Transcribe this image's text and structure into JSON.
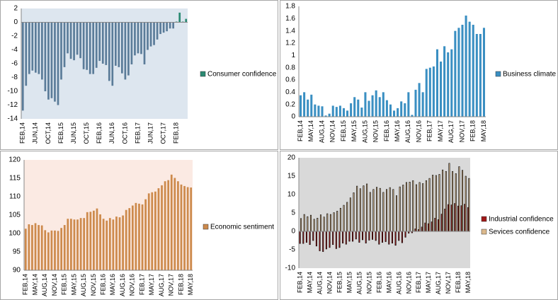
{
  "chart_data": [
    {
      "type": "bar",
      "legend": "right",
      "grid": false,
      "plot_background": "#dde6ef",
      "categories": [
        "FEB,14",
        null,
        null,
        null,
        "JUN,14",
        null,
        null,
        null,
        "OCT,14",
        null,
        null,
        null,
        "FEB,15",
        null,
        null,
        null,
        "JUN,15",
        null,
        null,
        null,
        "OCT,15",
        null,
        null,
        null,
        "FEB,16",
        null,
        null,
        null,
        "JUN,16",
        null,
        null,
        null,
        "OCT,16",
        null,
        null,
        null,
        "FEB,17",
        null,
        null,
        null,
        "JUN,17",
        null,
        null,
        null,
        "OCT,17",
        null,
        null,
        null,
        "FEB,18",
        null,
        null,
        null
      ],
      "series": [
        {
          "name": "Consumer confidence",
          "color": "#2a8a72",
          "negative_color": "#5b7c99",
          "values": [
            -12.8,
            -9.2,
            -7.5,
            -7.0,
            -7.3,
            -7.5,
            -8.3,
            -10.0,
            -11.2,
            -11.0,
            -11.5,
            -12.0,
            -8.3,
            -6.5,
            -4.5,
            -5.3,
            -5.5,
            -4.7,
            -5.2,
            -6.8,
            -6.9,
            -7.5,
            -7.5,
            -6.6,
            -5.6,
            -6.0,
            -6.2,
            -8.5,
            -9.2,
            -6.3,
            -6.5,
            -7.4,
            -8.3,
            -7.7,
            -6.1,
            -4.8,
            -4.5,
            -4.6,
            -6.1,
            -4.0,
            -3.5,
            -3.3,
            -2.5,
            -1.7,
            -1.5,
            -1.3,
            -0.9,
            -0.9,
            0.1,
            1.4,
            0.1,
            0.5
          ]
        }
      ],
      "ylim": [
        -14,
        2
      ],
      "yticks": [
        -14,
        -12,
        -10,
        -8,
        -6,
        -4,
        -2,
        0,
        2
      ]
    },
    {
      "type": "bar",
      "legend": "right",
      "grid": false,
      "plot_background": "#ffffff",
      "categories": [
        "FEB,14",
        null,
        null,
        "MAY,14",
        null,
        null,
        "AUG,14",
        null,
        null,
        "NOV,14",
        null,
        null,
        "FEB,15",
        null,
        null,
        "MAY,15",
        null,
        null,
        "AUG,15",
        null,
        null,
        "NOV,15",
        null,
        null,
        "FEB,16",
        null,
        null,
        "MAY,16",
        null,
        null,
        "AUG,16",
        null,
        null,
        "NOV,16",
        null,
        null,
        "FEB,17",
        null,
        null,
        "MAY,17",
        null,
        null,
        "AUG,17",
        null,
        null,
        "NOV,17",
        null,
        null,
        "FEB,18",
        null,
        null,
        "MAY,18"
      ],
      "series": [
        {
          "name": "Business climate",
          "color": "#3a8fc2",
          "values": [
            0.35,
            0.4,
            0.28,
            0.36,
            0.2,
            0.18,
            0.17,
            0.02,
            0.05,
            0.18,
            0.16,
            0.18,
            0.14,
            0.1,
            0.22,
            0.32,
            0.28,
            0.15,
            0.4,
            0.26,
            0.35,
            0.43,
            0.32,
            0.4,
            0.27,
            0.2,
            0.1,
            0.14,
            0.25,
            0.22,
            0.4,
            0.03,
            0.44,
            0.55,
            0.4,
            0.78,
            0.8,
            0.82,
            1.1,
            0.9,
            1.15,
            1.05,
            1.1,
            1.4,
            1.45,
            1.5,
            1.65,
            1.55,
            1.5,
            1.35,
            1.35,
            1.45
          ]
        }
      ],
      "ylim": [
        0,
        1.8
      ],
      "yticks": [
        0,
        0.2,
        0.4,
        0.6,
        0.8,
        1,
        1.2,
        1.4,
        1.6,
        1.8
      ]
    },
    {
      "type": "bar",
      "legend": "right",
      "grid": false,
      "plot_background": "#fbeae3",
      "categories": [
        "FEB,14",
        null,
        null,
        "MAY,14",
        null,
        null,
        "AUG,14",
        null,
        null,
        "NOV,14",
        null,
        null,
        "FEB,15",
        null,
        null,
        "MAY,15",
        null,
        null,
        "AUG,15",
        null,
        null,
        "NOV,15",
        null,
        null,
        "FEB,16",
        null,
        null,
        "MAY,16",
        null,
        null,
        "AUG,16",
        null,
        null,
        "NOV,16",
        null,
        null,
        "FEB,17",
        null,
        null,
        "MAY,17",
        null,
        null,
        "AUG,17",
        null,
        null,
        "NOV,17",
        null,
        null,
        "FEB,18",
        null,
        null,
        "MAY,18"
      ],
      "series": [
        {
          "name": "Economic sentiment",
          "color": "#cd8a4c",
          "values": [
            101.3,
            102.5,
            102.3,
            102.8,
            102.3,
            102.2,
            100.9,
            100.3,
            100.8,
            100.8,
            100.7,
            101.5,
            102.3,
            104.0,
            104.0,
            103.8,
            103.8,
            104.2,
            104.2,
            105.8,
            105.9,
            106.2,
            106.8,
            105.2,
            104.0,
            103.5,
            104.2,
            103.8,
            104.6,
            104.4,
            104.9,
            106.4,
            106.9,
            107.6,
            108.3,
            108.1,
            107.9,
            109.3,
            110.9,
            111.2,
            111.4,
            112.3,
            113.1,
            114.2,
            114.5,
            116.0,
            115.1,
            114.2,
            113.3,
            112.9,
            112.6,
            112.5
          ]
        }
      ],
      "ylim": [
        90,
        120
      ],
      "yticks": [
        90,
        95,
        100,
        105,
        110,
        115,
        120
      ]
    },
    {
      "type": "bar",
      "legend": "right",
      "grid": false,
      "plot_background": "#d9d9d9",
      "categories": [
        "FEB,14",
        null,
        null,
        "MAY,14",
        null,
        null,
        "AUG,14",
        null,
        null,
        "NOV,14",
        null,
        null,
        "FEB,15",
        null,
        null,
        "MAY,15",
        null,
        null,
        "AUG,15",
        null,
        null,
        "NOV,15",
        null,
        null,
        "FEB,16",
        null,
        null,
        "MAY,16",
        null,
        null,
        "AUG,16",
        null,
        null,
        "NOV,16",
        null,
        null,
        "FEB,17",
        null,
        null,
        "MAY,17",
        null,
        null,
        "AUG,17",
        null,
        null,
        "NOV,17",
        null,
        null,
        "FEB,18",
        null,
        null,
        "MAY,18"
      ],
      "series": [
        {
          "name": "Industrial confidence",
          "color": "#a01818",
          "values": [
            -3.3,
            -3.3,
            -3.0,
            -3.6,
            -2.5,
            -4.0,
            -5.3,
            -5.5,
            -4.8,
            -4.4,
            -3.6,
            -4.7,
            -4.4,
            -3.2,
            -3.5,
            -2.7,
            -2.7,
            -2.1,
            -3.0,
            -2.3,
            -3.2,
            -2.4,
            -2.2,
            -2.5,
            -3.5,
            -3.0,
            -2.8,
            -3.5,
            -3.2,
            -3.8,
            -2.5,
            -3.1,
            -1.6,
            -0.5,
            -0.4,
            0.7,
            0.5,
            1.2,
            2.3,
            2.1,
            2.6,
            3.6,
            3.2,
            4.7,
            6.1,
            7.3,
            7.2,
            7.6,
            6.9,
            7.0,
            7.4,
            6.5
          ]
        },
        {
          "name": "Sevices confidence",
          "color": "#dcb98c",
          "values": [
            3.5,
            4.6,
            4.0,
            4.4,
            3.3,
            3.6,
            4.5,
            3.9,
            4.8,
            4.6,
            5.1,
            5.5,
            6.3,
            7.1,
            7.9,
            9.1,
            10.5,
            12.3,
            11.6,
            12.4,
            12.9,
            10.6,
            11.4,
            12.0,
            11.7,
            10.6,
            11.4,
            11.9,
            11.4,
            9.7,
            12.1,
            12.6,
            13.3,
            13.4,
            13.8,
            12.7,
            13.3,
            13.0,
            13.8,
            14.4,
            15.3,
            15.2,
            15.5,
            16.7,
            16.3,
            18.5,
            16.3,
            15.7,
            17.6,
            16.6,
            15.0,
            14.4
          ]
        }
      ],
      "ylim": [
        -10,
        20
      ],
      "yticks": [
        -10,
        -5,
        0,
        5,
        10,
        15,
        20
      ]
    }
  ]
}
